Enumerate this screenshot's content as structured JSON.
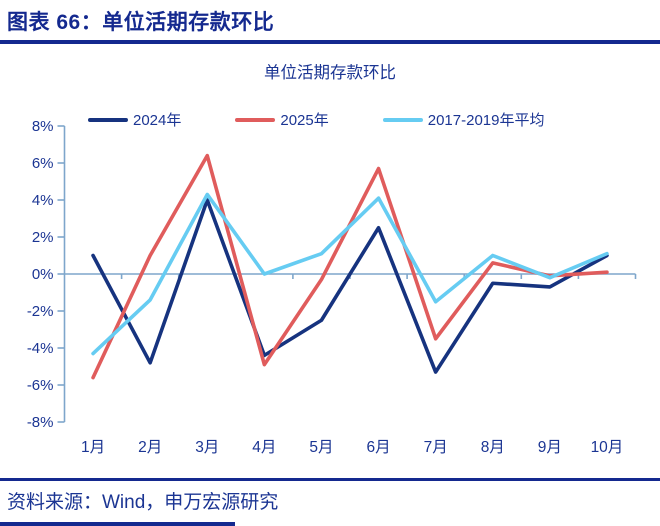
{
  "header": {
    "title": "图表 66：单位活期存款环比"
  },
  "footer": {
    "source": "资料来源：Wind，申万宏源研究"
  },
  "chart_data": {
    "type": "line",
    "title": "单位活期存款环比",
    "categories": [
      "1月",
      "2月",
      "3月",
      "4月",
      "5月",
      "6月",
      "7月",
      "8月",
      "9月",
      "10月"
    ],
    "series": [
      {
        "name": "2024年",
        "color": "#16337f",
        "values": [
          1.0,
          -4.8,
          4.0,
          -4.4,
          -2.5,
          2.5,
          -5.3,
          -0.5,
          -0.7,
          1.0
        ]
      },
      {
        "name": "2025年",
        "color": "#e05c5c",
        "values": [
          -5.6,
          1.0,
          6.4,
          -4.9,
          -0.3,
          5.7,
          -3.5,
          0.6,
          -0.1,
          0.1
        ]
      },
      {
        "name": "2017-2019年平均",
        "color": "#66ccf2",
        "values": [
          -4.3,
          -1.4,
          4.3,
          0.0,
          1.1,
          4.1,
          -1.5,
          1.0,
          -0.2,
          1.1
        ]
      }
    ],
    "ylim": [
      -8,
      8
    ],
    "ytick_step": 2,
    "ytick_suffix": "%",
    "grid": false,
    "legend_position": "top",
    "axis_color": "#7ea6cb",
    "text_color": "#1b3593"
  }
}
